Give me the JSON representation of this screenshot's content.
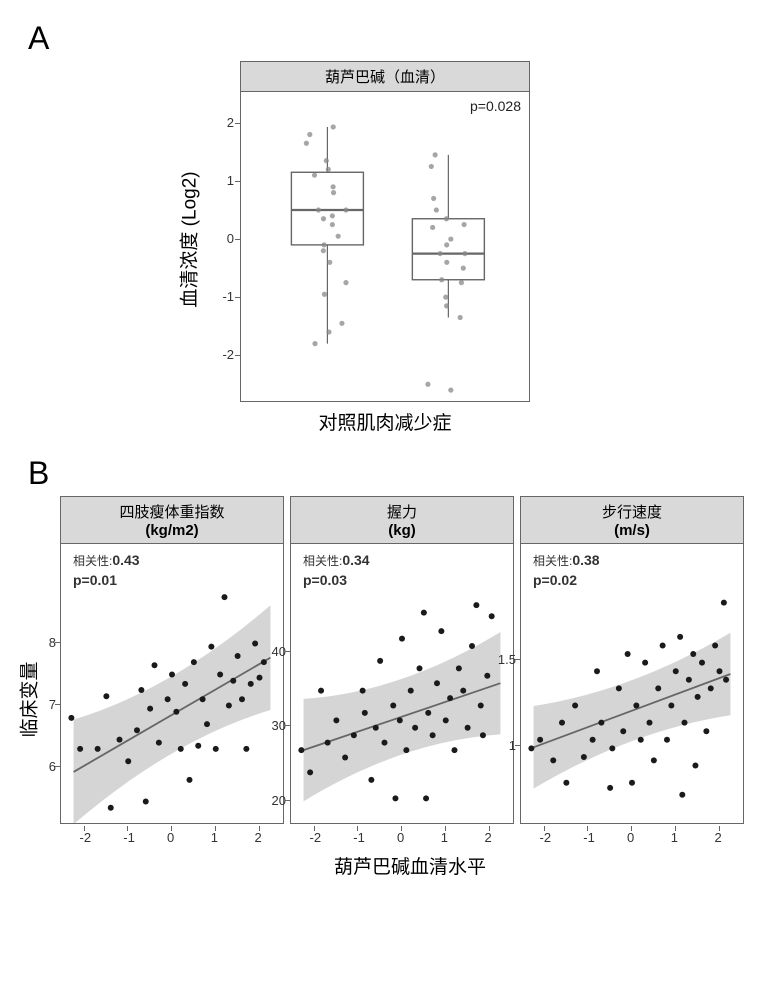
{
  "panelA": {
    "figLabel": "A",
    "stripTitle": "葫芦巴碱（血清）",
    "pvalue": "p=0.028",
    "yAxisLabel": "血清浓度 (Log2)",
    "xAxisLabel": "对照肌肉减少症",
    "ylim": [
      -2.6,
      2.1
    ],
    "yticks": [
      -2,
      -1,
      0,
      1,
      2
    ],
    "box1": {
      "q1": -0.05,
      "med": 0.55,
      "q3": 1.2,
      "wlo": -1.75,
      "whi": 1.98
    },
    "box2": {
      "q1": -0.65,
      "med": -0.2,
      "q3": 0.4,
      "wlo": -1.3,
      "whi": 1.5
    },
    "jitter1": [
      1.7,
      1.98,
      1.85,
      1.4,
      1.25,
      1.15,
      0.95,
      0.85,
      0.55,
      0.55,
      0.45,
      0.4,
      0.3,
      0.1,
      -0.05,
      -0.15,
      -0.35,
      -0.7,
      -0.9,
      -1.4,
      -1.55,
      -1.75
    ],
    "jitter2": [
      1.5,
      1.3,
      0.75,
      0.55,
      0.4,
      0.3,
      0.25,
      0.05,
      -0.05,
      -0.2,
      -0.2,
      -0.35,
      -0.45,
      -0.65,
      -0.7,
      -0.95,
      -1.1,
      -1.3,
      -2.45,
      -2.55
    ],
    "boxColor": "#666666",
    "pointColor": "#888888",
    "background": "#ffffff"
  },
  "panelB": {
    "figLabel": "B",
    "yAxisLabel": "临床变量",
    "xAxisLabel": "葫芦巴碱血清水平",
    "xlim": [
      -2.4,
      2.4
    ],
    "xticks": [
      -2,
      -1,
      0,
      1,
      2
    ],
    "plots": [
      {
        "titleLine1": "四肢瘦体重指数",
        "titleLine2": "(kg/m2)",
        "corr": "0.43",
        "pvalue": "p=0.01",
        "ylim": [
          5.1,
          8.7
        ],
        "yticks": [
          6,
          7,
          8
        ],
        "slope": 0.41,
        "intercept": 6.75,
        "ciWidth": 0.65,
        "points": [
          [
            -2.3,
            6.7
          ],
          [
            -2.1,
            6.2
          ],
          [
            -1.7,
            6.2
          ],
          [
            -1.5,
            7.05
          ],
          [
            -1.4,
            5.25
          ],
          [
            -1.2,
            6.35
          ],
          [
            -1.0,
            6.0
          ],
          [
            -0.8,
            6.5
          ],
          [
            -0.7,
            7.15
          ],
          [
            -0.6,
            5.35
          ],
          [
            -0.5,
            6.85
          ],
          [
            -0.4,
            7.55
          ],
          [
            -0.3,
            6.3
          ],
          [
            -0.1,
            7.0
          ],
          [
            0.0,
            7.4
          ],
          [
            0.1,
            6.8
          ],
          [
            0.2,
            6.2
          ],
          [
            0.3,
            7.25
          ],
          [
            0.4,
            5.7
          ],
          [
            0.5,
            7.6
          ],
          [
            0.6,
            6.25
          ],
          [
            0.7,
            7.0
          ],
          [
            0.8,
            6.6
          ],
          [
            0.9,
            7.85
          ],
          [
            1.0,
            6.2
          ],
          [
            1.1,
            7.4
          ],
          [
            1.2,
            8.65
          ],
          [
            1.3,
            6.9
          ],
          [
            1.4,
            7.3
          ],
          [
            1.5,
            7.7
          ],
          [
            1.6,
            7.0
          ],
          [
            1.7,
            6.2
          ],
          [
            1.8,
            7.25
          ],
          [
            1.9,
            7.9
          ],
          [
            2.0,
            7.35
          ],
          [
            2.1,
            7.6
          ]
        ]
      },
      {
        "titleLine1": "握力",
        "titleLine2": "(kg)",
        "corr": "0.34",
        "pvalue": "p=0.03",
        "ylim": [
          17,
          47
        ],
        "yticks": [
          20,
          30,
          40
        ],
        "slope": 2.0,
        "intercept": 30.5,
        "ciWidth": 5.3,
        "points": [
          [
            -2.3,
            26
          ],
          [
            -2.1,
            23
          ],
          [
            -1.85,
            34
          ],
          [
            -1.7,
            27
          ],
          [
            -1.5,
            30
          ],
          [
            -1.3,
            25
          ],
          [
            -1.1,
            28
          ],
          [
            -0.9,
            34
          ],
          [
            -0.85,
            31
          ],
          [
            -0.7,
            22
          ],
          [
            -0.6,
            29
          ],
          [
            -0.5,
            38
          ],
          [
            -0.4,
            27
          ],
          [
            -0.2,
            32
          ],
          [
            -0.15,
            19.5
          ],
          [
            -0.05,
            30
          ],
          [
            0.0,
            41
          ],
          [
            0.1,
            26
          ],
          [
            0.2,
            34
          ],
          [
            0.3,
            29
          ],
          [
            0.4,
            37
          ],
          [
            0.5,
            44.5
          ],
          [
            0.55,
            19.5
          ],
          [
            0.6,
            31
          ],
          [
            0.7,
            28
          ],
          [
            0.8,
            35
          ],
          [
            0.9,
            42
          ],
          [
            1.0,
            30
          ],
          [
            1.1,
            33
          ],
          [
            1.2,
            26
          ],
          [
            1.3,
            37
          ],
          [
            1.4,
            34
          ],
          [
            1.5,
            29
          ],
          [
            1.6,
            40
          ],
          [
            1.7,
            45.5
          ],
          [
            1.8,
            32
          ],
          [
            1.85,
            28
          ],
          [
            1.95,
            36
          ],
          [
            2.05,
            44
          ]
        ]
      },
      {
        "titleLine1": "步行速度",
        "titleLine2": "(m/s)",
        "corr": "0.38",
        "pvalue": "p=0.02",
        "ylim": [
          0.55,
          1.85
        ],
        "yticks": [
          1.0,
          1.5
        ],
        "slope": 0.095,
        "intercept": 1.17,
        "ciWidth": 0.185,
        "points": [
          [
            -2.3,
            0.95
          ],
          [
            -2.1,
            1.0
          ],
          [
            -1.8,
            0.88
          ],
          [
            -1.6,
            1.1
          ],
          [
            -1.5,
            0.75
          ],
          [
            -1.3,
            1.2
          ],
          [
            -1.1,
            0.9
          ],
          [
            -0.9,
            1.0
          ],
          [
            -0.8,
            1.4
          ],
          [
            -0.7,
            1.1
          ],
          [
            -0.5,
            0.72
          ],
          [
            -0.45,
            0.95
          ],
          [
            -0.3,
            1.3
          ],
          [
            -0.2,
            1.05
          ],
          [
            -0.1,
            1.5
          ],
          [
            0.0,
            0.75
          ],
          [
            0.1,
            1.2
          ],
          [
            0.2,
            1.0
          ],
          [
            0.3,
            1.45
          ],
          [
            0.4,
            1.1
          ],
          [
            0.5,
            0.88
          ],
          [
            0.6,
            1.3
          ],
          [
            0.7,
            1.55
          ],
          [
            0.8,
            1.0
          ],
          [
            0.9,
            1.2
          ],
          [
            1.0,
            1.4
          ],
          [
            1.1,
            1.6
          ],
          [
            1.15,
            0.68
          ],
          [
            1.2,
            1.1
          ],
          [
            1.3,
            1.35
          ],
          [
            1.4,
            1.5
          ],
          [
            1.45,
            0.85
          ],
          [
            1.5,
            1.25
          ],
          [
            1.6,
            1.45
          ],
          [
            1.7,
            1.05
          ],
          [
            1.8,
            1.3
          ],
          [
            1.9,
            1.55
          ],
          [
            2.0,
            1.4
          ],
          [
            2.1,
            1.8
          ],
          [
            2.15,
            1.35
          ]
        ]
      }
    ],
    "lineColor": "#666666",
    "ciColor": "#bfbfbf",
    "pointColor": "#1a1a1a",
    "background": "#ffffff"
  },
  "corrPrefix": "相关性:"
}
